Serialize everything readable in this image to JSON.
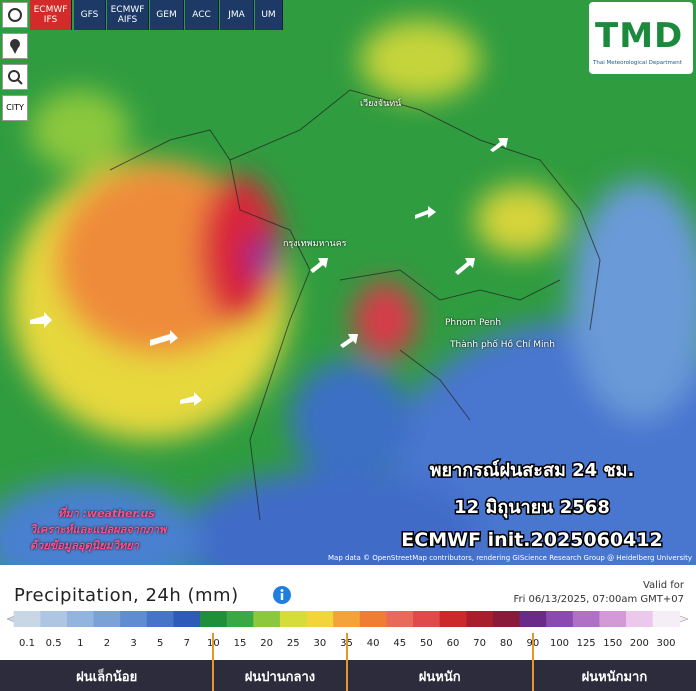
{
  "model_tabs": [
    "ECMWF IFS",
    "GFS",
    "ECMWF AIFS",
    "GEM",
    "ACC",
    "JMA",
    "UM"
  ],
  "city_button": "CITY",
  "logo": {
    "title": "TMD",
    "subtitle": "Thai Meteorological Department"
  },
  "map": {
    "places": [
      "กรุงเทพมหานคร",
      "เวียงจันทน์",
      "Phnom Penh",
      "Thành phố Hồ Chí Minh"
    ],
    "headline": [
      "พยากรณ์ฝนสะสม 24 ชม.",
      "12 มิถุนายน 2568",
      "ECMWF init.2025060412"
    ],
    "source": [
      "ที่มา :weather.us",
      "วิเคราะห์และแปลผลจากภาพ",
      "ด้วยข้อมูลอุตุนิยมวิทยา"
    ],
    "attribution": "Map data © OpenStreetMap contributors, rendering GIScience Research Group @ Heidelberg University"
  },
  "legend": {
    "title": "Precipitation, 24h (mm)",
    "valid_label": "Valid for",
    "valid_time": "Fri 06/13/2025, 07:00am GMT+07",
    "scale": [
      0.1,
      0.5,
      1,
      2,
      3,
      5,
      7,
      10,
      15,
      20,
      25,
      30,
      35,
      40,
      45,
      50,
      60,
      70,
      80,
      90,
      100,
      125,
      150,
      200,
      300
    ],
    "colors": [
      "#c9d6e6",
      "#afc6e2",
      "#93b4de",
      "#7aa2d8",
      "#5f8dd2",
      "#4675c7",
      "#2f5bb8",
      "#1f8f3a",
      "#3aa843",
      "#8cc83e",
      "#d6dc3a",
      "#f3d43a",
      "#f4a23a",
      "#ef7e34",
      "#ea6a5a",
      "#e04a4a",
      "#cc2a2a",
      "#a81e2a",
      "#8a1a3a",
      "#6a2a8a",
      "#8a4ab0",
      "#b070c8",
      "#d49ad8",
      "#ecc8ec",
      "#f6eef6"
    ],
    "categories": [
      "ฝนเล็กน้อย",
      "ฝนปานกลาง",
      "ฝนหนัก",
      "ฝนหนักมาก"
    ]
  }
}
